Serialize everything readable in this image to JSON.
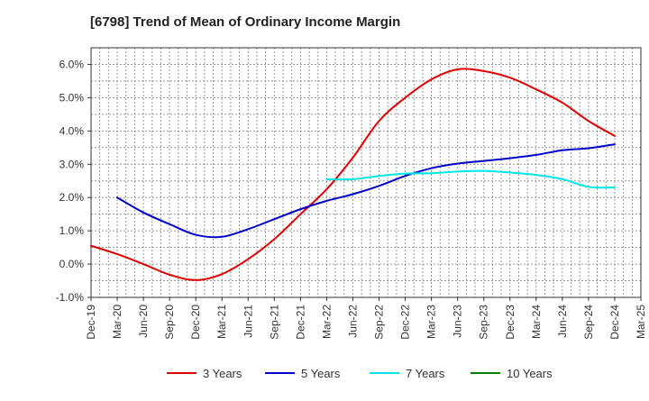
{
  "chart_data": {
    "type": "line",
    "title": "[6798]  Trend of Mean of Ordinary Income Margin",
    "xlabel": "",
    "ylabel": "",
    "x_categories": [
      "Dec-19",
      "Mar-20",
      "Jun-20",
      "Sep-20",
      "Dec-20",
      "Mar-21",
      "Jun-21",
      "Sep-21",
      "Dec-21",
      "Mar-22",
      "Jun-22",
      "Sep-22",
      "Dec-22",
      "Mar-23",
      "Jun-23",
      "Sep-23",
      "Dec-23",
      "Mar-24",
      "Jun-24",
      "Sep-24",
      "Dec-24",
      "Mar-25"
    ],
    "y_ticks": [
      -1.0,
      0.0,
      1.0,
      2.0,
      3.0,
      4.0,
      5.0,
      6.0
    ],
    "y_tick_labels": [
      "-1.0%",
      "0.0%",
      "1.0%",
      "2.0%",
      "3.0%",
      "4.0%",
      "5.0%",
      "6.0%"
    ],
    "ylim": [
      -1.0,
      6.5
    ],
    "grid": true,
    "legend_position": "bottom",
    "series": [
      {
        "name": "3 Years",
        "color": "#e00000",
        "values": [
          0.55,
          0.3,
          0.0,
          -0.32,
          -0.48,
          -0.3,
          0.15,
          0.75,
          1.5,
          2.25,
          3.2,
          4.3,
          5.0,
          5.55,
          5.85,
          5.8,
          5.6,
          5.25,
          4.85,
          4.3,
          3.85,
          null
        ]
      },
      {
        "name": "5 Years",
        "color": "#0000cc",
        "values": [
          null,
          2.0,
          1.55,
          1.2,
          0.88,
          0.82,
          1.05,
          1.35,
          1.65,
          1.9,
          2.1,
          2.35,
          2.65,
          2.88,
          3.02,
          3.1,
          3.18,
          3.28,
          3.42,
          3.48,
          3.6,
          null
        ]
      },
      {
        "name": "7 Years",
        "color": "#00e5e5",
        "values": [
          null,
          null,
          null,
          null,
          null,
          null,
          null,
          null,
          null,
          2.55,
          2.55,
          2.65,
          2.72,
          2.73,
          2.78,
          2.8,
          2.75,
          2.68,
          2.55,
          2.32,
          2.3,
          null
        ]
      },
      {
        "name": "10 Years",
        "color": "#008000",
        "values": [
          null,
          null,
          null,
          null,
          null,
          null,
          null,
          null,
          null,
          null,
          null,
          null,
          null,
          null,
          null,
          null,
          null,
          null,
          null,
          null,
          null,
          null
        ]
      }
    ]
  }
}
